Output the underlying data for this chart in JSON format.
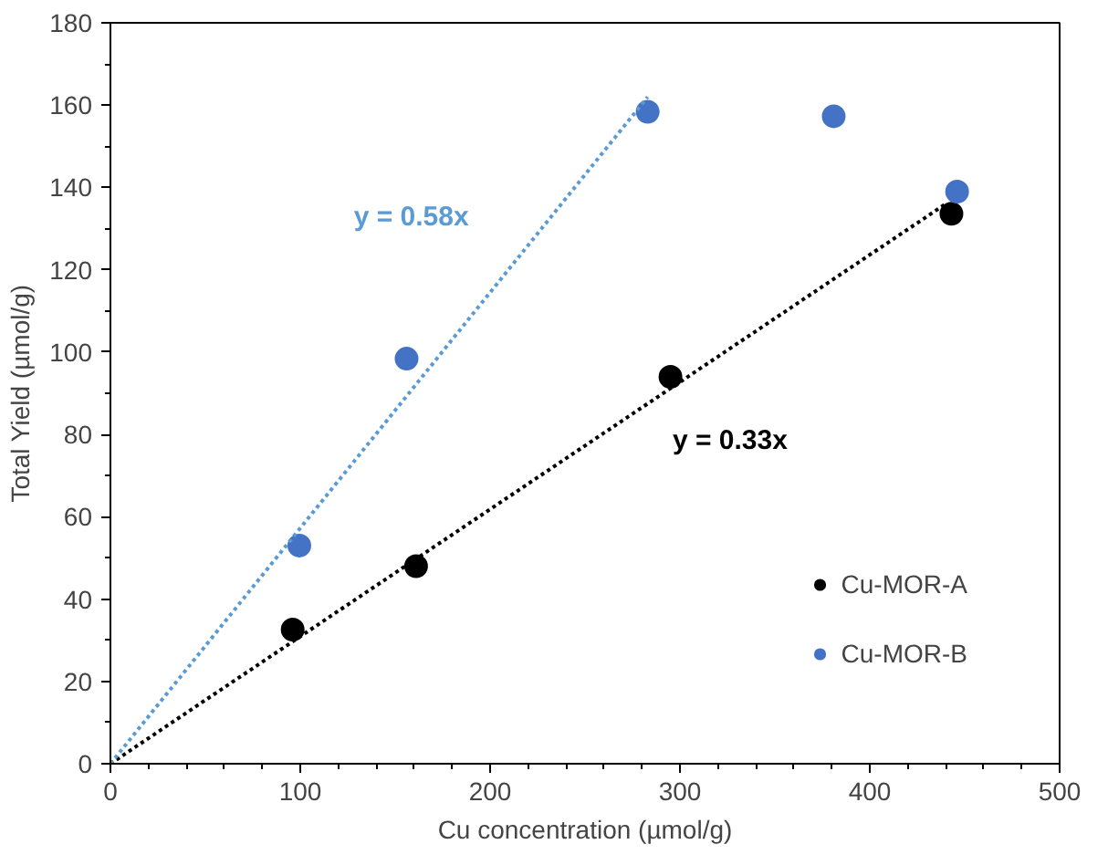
{
  "chart_data": {
    "type": "scatter",
    "xlabel": "Cu concentration (µmol/g)",
    "ylabel": "Total Yield (µmol/g)",
    "xlim": [
      0,
      500
    ],
    "ylim": [
      0,
      180
    ],
    "xticks": [
      0,
      {
        "value": 20,
        "label": null
      },
      {
        "value": 40,
        "label": null
      },
      {
        "value": 60,
        "label": null
      },
      {
        "value": 80,
        "label": null
      },
      100,
      {
        "value": 120,
        "label": null
      },
      {
        "value": 140,
        "label": null
      },
      {
        "value": 160,
        "label": null
      },
      {
        "value": 180,
        "label": null
      },
      200,
      {
        "value": 220,
        "label": null
      },
      {
        "value": 240,
        "label": null
      },
      {
        "value": 260,
        "label": null
      },
      {
        "value": 280,
        "label": null
      },
      300,
      {
        "value": 320,
        "label": null
      },
      {
        "value": 340,
        "label": null
      },
      {
        "value": 360,
        "label": null
      },
      {
        "value": 380,
        "label": null
      },
      400,
      {
        "value": 420,
        "label": null
      },
      {
        "value": 440,
        "label": null
      },
      {
        "value": 460,
        "label": null
      },
      {
        "value": 480,
        "label": null
      },
      500
    ],
    "yticks": [
      0,
      {
        "value": 10,
        "label": null
      },
      20,
      {
        "value": 30,
        "label": null
      },
      40,
      {
        "value": 50,
        "label": null
      },
      60,
      {
        "value": 70,
        "label": null
      },
      80,
      {
        "value": 90,
        "label": null
      },
      100,
      {
        "value": 110,
        "label": null
      },
      120,
      {
        "value": 130,
        "label": null
      },
      140,
      {
        "value": 150,
        "label": null
      },
      160,
      {
        "value": 170,
        "label": null
      },
      180
    ],
    "grid": false,
    "legend": "bottom right",
    "marker": "circle",
    "series": [
      {
        "name": "Cu-MOR-A",
        "color": "#000000",
        "x": [
          96,
          161,
          295,
          443
        ],
        "values": [
          32.6,
          48,
          94,
          133.6
        ]
      },
      {
        "name": "Cu-MOR-B",
        "color": "#4472c4",
        "x": [
          99.5,
          156,
          283,
          381,
          446
        ],
        "values": [
          53,
          98.4,
          158.4,
          157.3,
          139
        ]
      },
      {
        "type": "line",
        "color": "#000000",
        "line_style": "dotted",
        "marker": "none",
        "x": [
          0,
          440
        ],
        "values": [
          0,
          136
        ]
      },
      {
        "type": "line",
        "color": "#5b9bd5",
        "line_style": "dotted",
        "marker": "none",
        "x": [
          0,
          283
        ],
        "values": [
          0,
          162
        ]
      }
    ],
    "annotations": [
      "y = 0.33x",
      "y = 0.58x"
    ]
  }
}
